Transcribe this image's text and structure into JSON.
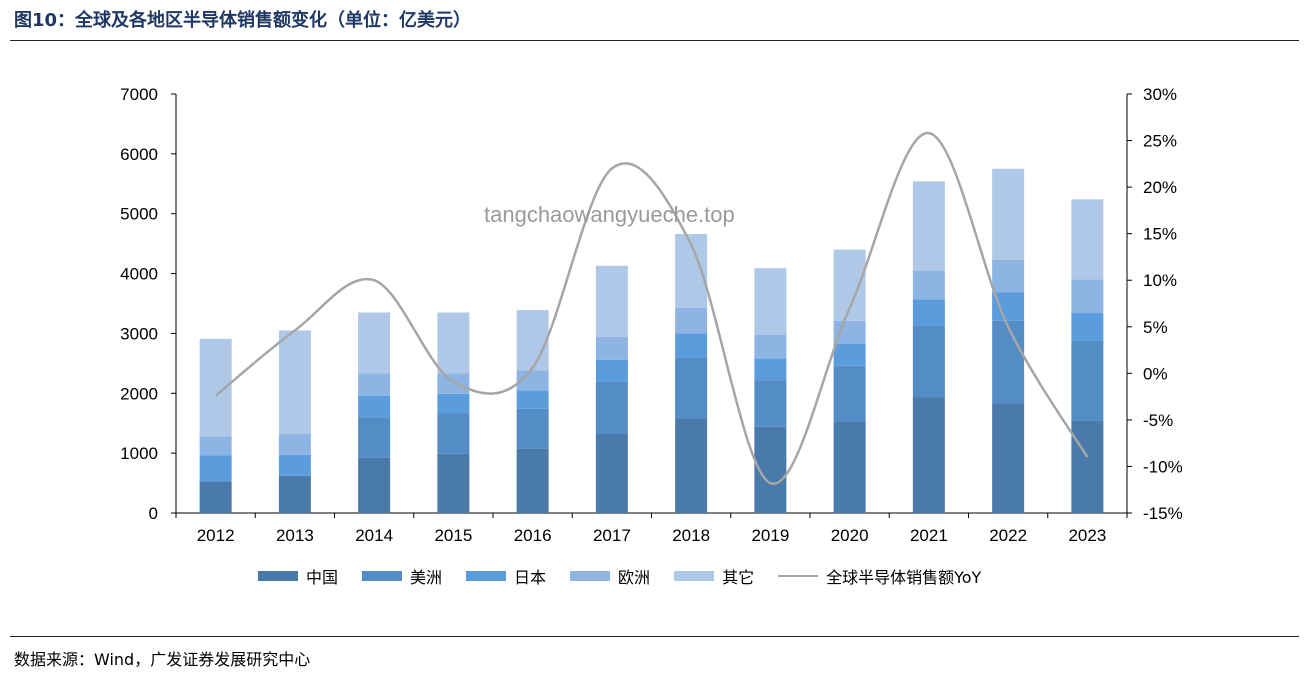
{
  "header": {
    "title": "图10：全球及各地区半导体销售额变化（单位：亿美元）"
  },
  "watermark": "tangchaowangyueche.top",
  "footer": {
    "source": "数据来源：Wind，广发证券发展研究中心"
  },
  "chart_data": {
    "type": "bar",
    "stacked": true,
    "title": "全球及各地区半导体销售额变化（单位：亿美元）",
    "categories": [
      "2012",
      "2013",
      "2014",
      "2015",
      "2016",
      "2017",
      "2018",
      "2019",
      "2020",
      "2021",
      "2022",
      "2023"
    ],
    "series": [
      {
        "name": "中国",
        "color": "#4a7aaa",
        "values": [
          530,
          620,
          920,
          990,
          1070,
          1320,
          1580,
          1440,
          1520,
          1930,
          1830,
          1550
        ]
      },
      {
        "name": "美洲",
        "color": "#548dc6",
        "values": [
          0,
          0,
          680,
          680,
          670,
          880,
          1020,
          780,
          940,
          1200,
          1380,
          1330
        ]
      },
      {
        "name": "日本",
        "color": "#5b9cdd",
        "values": [
          430,
          350,
          360,
          320,
          310,
          360,
          400,
          360,
          370,
          440,
          480,
          460
        ]
      },
      {
        "name": "欧洲",
        "color": "#8eb4e3",
        "values": [
          320,
          350,
          370,
          340,
          330,
          380,
          430,
          400,
          380,
          480,
          540,
          560
        ]
      },
      {
        "name": "其它",
        "color": "#b0c8e8",
        "values": [
          1630,
          1730,
          1020,
          1020,
          1010,
          1190,
          1230,
          1110,
          1190,
          1490,
          1520,
          1340
        ]
      }
    ],
    "line": {
      "name": "全球半导体销售额YoY",
      "color": "#a6a6a6",
      "values": [
        -2.4,
        4.6,
        10.0,
        -0.9,
        0.6,
        22.0,
        13.8,
        -11.8,
        7.0,
        25.8,
        5.0,
        -9.0
      ]
    },
    "y_left": {
      "min": 0,
      "max": 7000,
      "step": 1000,
      "ticks": [
        "0",
        "1000",
        "2000",
        "3000",
        "4000",
        "5000",
        "6000",
        "7000"
      ]
    },
    "y_right": {
      "min": -15,
      "max": 30,
      "step": 5,
      "ticks": [
        "-15%",
        "-10%",
        "-5%",
        "0%",
        "5%",
        "10%",
        "15%",
        "20%",
        "25%",
        "30%"
      ]
    },
    "legend_position": "bottom"
  }
}
